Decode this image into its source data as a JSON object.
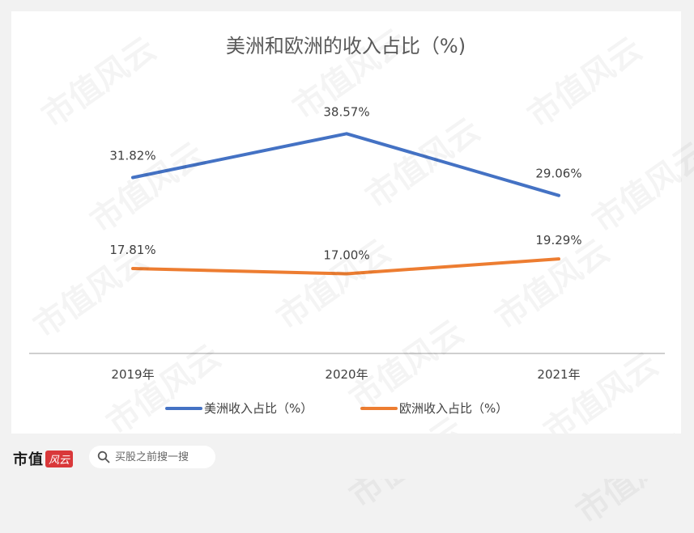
{
  "watermark_text": "市值风云",
  "footer": {
    "brand_name": "市值",
    "brand_logo_text": "风云",
    "search_placeholder": "买股之前搜一搜"
  },
  "colors": {
    "series1": "#4472c4",
    "series2": "#ed7d31",
    "axis": "#bfbfbf",
    "text": "#404040",
    "title": "#595959"
  },
  "chart_data": {
    "type": "line",
    "title": "美洲和欧洲的收入占比（%)",
    "categories": [
      "2019年",
      "2020年",
      "2021年"
    ],
    "series": [
      {
        "name": "美洲收入占比（%）",
        "values": [
          31.82,
          38.57,
          29.06
        ],
        "labels": [
          "31.82%",
          "38.57%",
          "29.06%"
        ],
        "color": "#4472c4"
      },
      {
        "name": "欧洲收入占比（%）",
        "values": [
          17.81,
          17.0,
          19.29
        ],
        "labels": [
          "17.81%",
          "17.00%",
          "19.29%"
        ],
        "color": "#ed7d31"
      }
    ],
    "ylim": [
      0,
      45
    ],
    "grid": false,
    "legend": "bottom"
  }
}
